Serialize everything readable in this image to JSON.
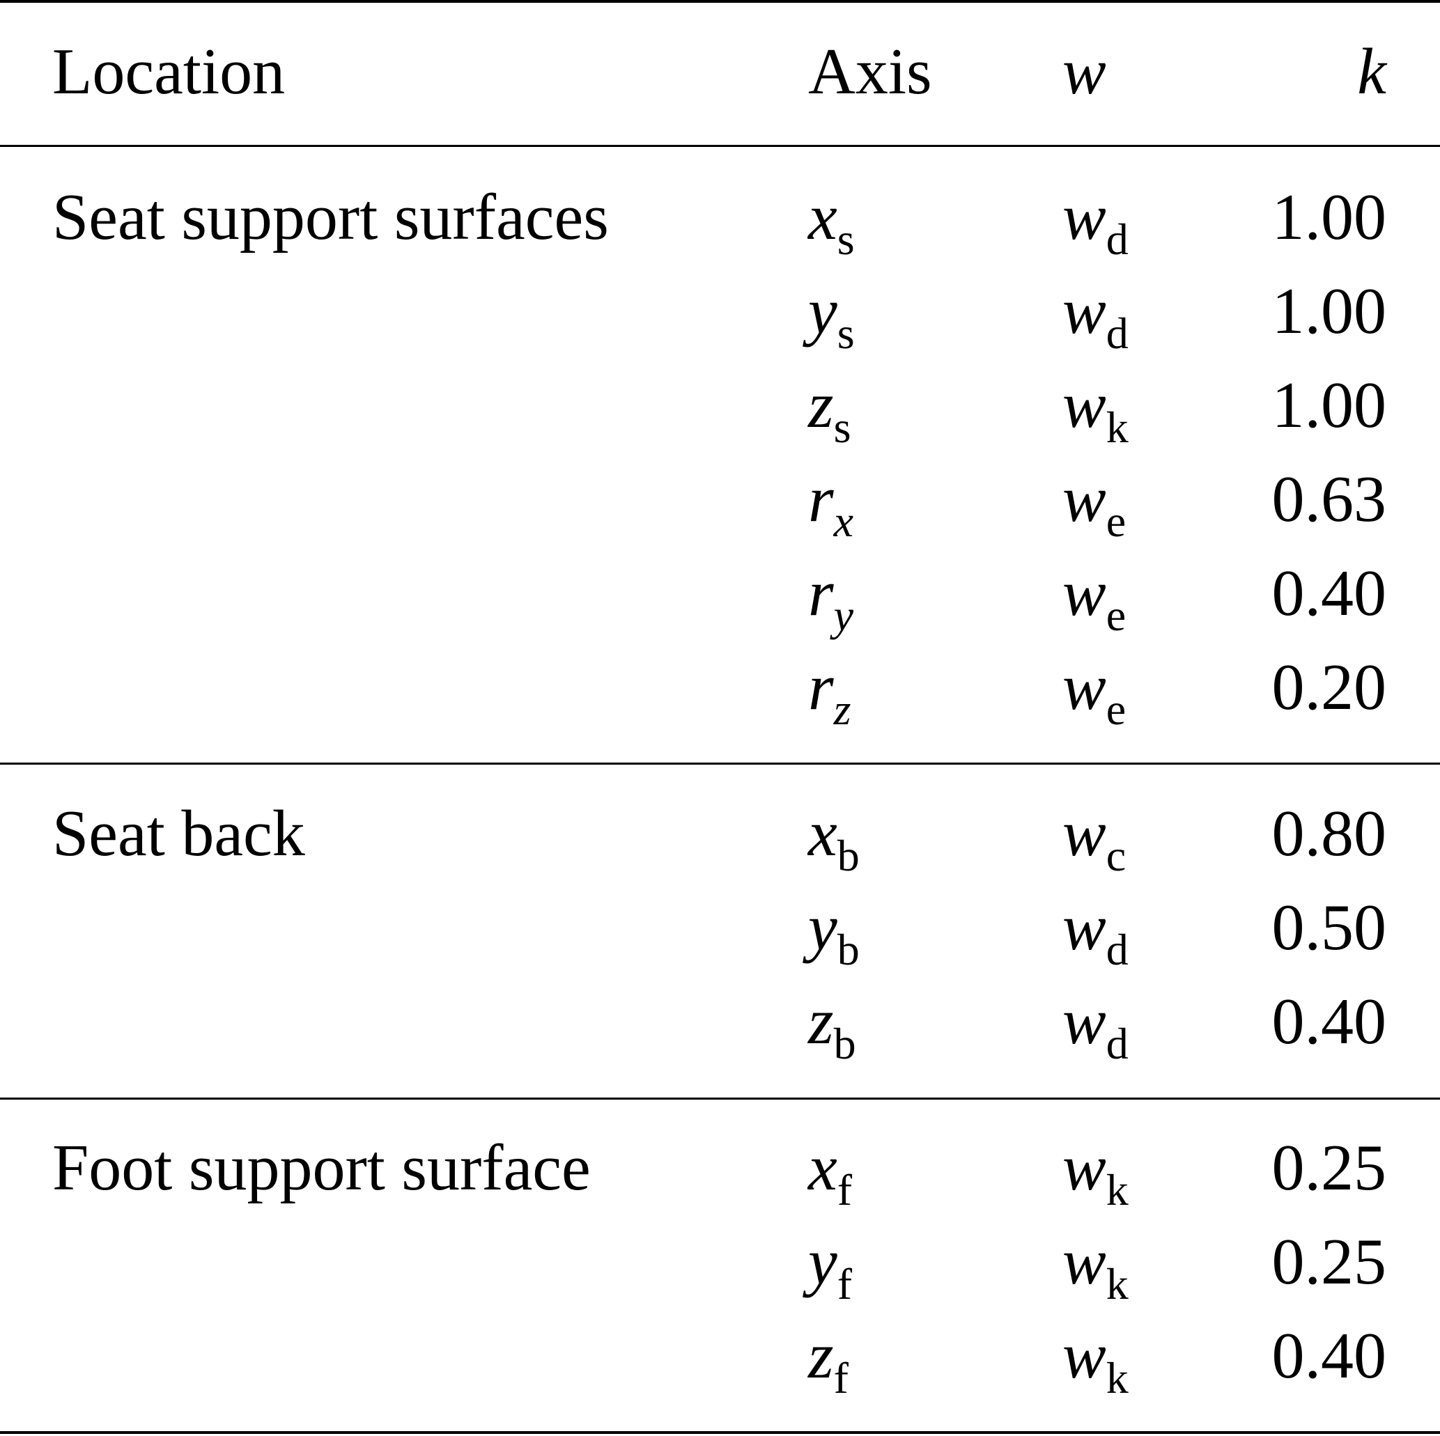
{
  "header": {
    "location": "Location",
    "axis": "Axis",
    "w": "w",
    "k": "k"
  },
  "groups": [
    {
      "label": "Seat support surfaces",
      "rows": [
        {
          "axis_base": "x",
          "axis_sub": "s",
          "axis_sub_italic": false,
          "w_base": "w",
          "w_sub": "d",
          "k": "1.00"
        },
        {
          "axis_base": "y",
          "axis_sub": "s",
          "axis_sub_italic": false,
          "w_base": "w",
          "w_sub": "d",
          "k": "1.00"
        },
        {
          "axis_base": "z",
          "axis_sub": "s",
          "axis_sub_italic": false,
          "w_base": "w",
          "w_sub": "k",
          "k": "1.00"
        },
        {
          "axis_base": "r",
          "axis_sub": "x",
          "axis_sub_italic": true,
          "w_base": "w",
          "w_sub": "e",
          "k": "0.63"
        },
        {
          "axis_base": "r",
          "axis_sub": "y",
          "axis_sub_italic": true,
          "w_base": "w",
          "w_sub": "e",
          "k": "0.40"
        },
        {
          "axis_base": "r",
          "axis_sub": "z",
          "axis_sub_italic": true,
          "w_base": "w",
          "w_sub": "e",
          "k": "0.20"
        }
      ]
    },
    {
      "label": "Seat back",
      "rows": [
        {
          "axis_base": "x",
          "axis_sub": "b",
          "axis_sub_italic": false,
          "w_base": "w",
          "w_sub": "c",
          "k": "0.80"
        },
        {
          "axis_base": "y",
          "axis_sub": "b",
          "axis_sub_italic": false,
          "w_base": "w",
          "w_sub": "d",
          "k": "0.50"
        },
        {
          "axis_base": "z",
          "axis_sub": "b",
          "axis_sub_italic": false,
          "w_base": "w",
          "w_sub": "d",
          "k": "0.40"
        }
      ]
    },
    {
      "label": "Foot support surface",
      "rows": [
        {
          "axis_base": "x",
          "axis_sub": "f",
          "axis_sub_italic": false,
          "w_base": "w",
          "w_sub": "k",
          "k": "0.25"
        },
        {
          "axis_base": "y",
          "axis_sub": "f",
          "axis_sub_italic": false,
          "w_base": "w",
          "w_sub": "k",
          "k": "0.25"
        },
        {
          "axis_base": "z",
          "axis_sub": "f",
          "axis_sub_italic": false,
          "w_base": "w",
          "w_sub": "k",
          "k": "0.40"
        }
      ]
    }
  ]
}
